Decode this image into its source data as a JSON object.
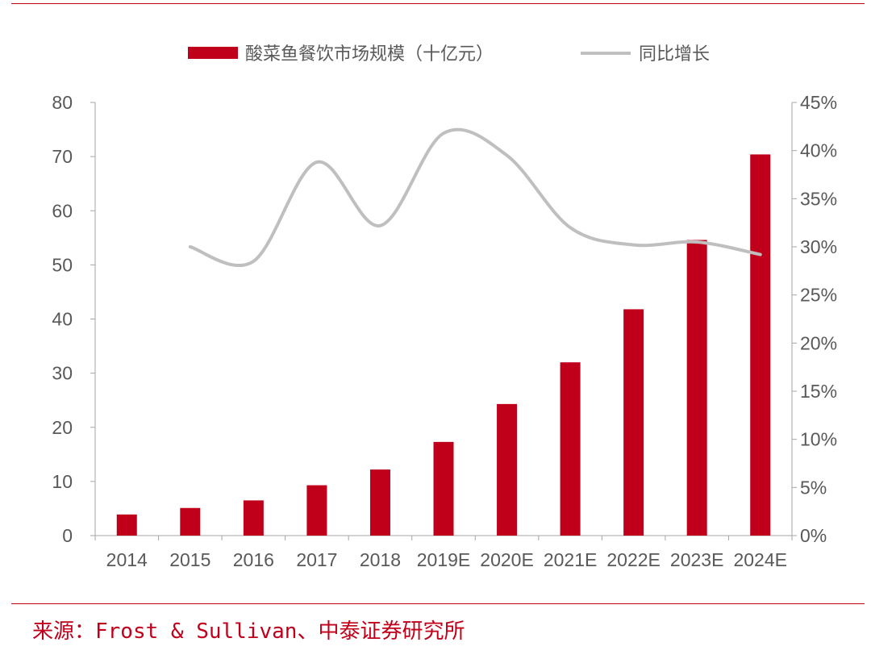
{
  "source": "来源：Frost & Sullivan、中泰证券研究所",
  "chart_data": {
    "type": "bar+line",
    "categories": [
      "2014",
      "2015",
      "2016",
      "2017",
      "2018",
      "2019E",
      "2020E",
      "2021E",
      "2022E",
      "2023E",
      "2024E"
    ],
    "series": [
      {
        "name": "酸菜鱼餐饮市场规模（十亿元）",
        "type": "bar",
        "axis": "left",
        "color": "#c0001a",
        "values": [
          3.9,
          5.1,
          6.5,
          9.3,
          12.2,
          17.3,
          24.3,
          32.0,
          41.8,
          54.6,
          70.4
        ]
      },
      {
        "name": "同比增长",
        "type": "line",
        "axis": "right",
        "color": "#bfbfbf",
        "values": [
          null,
          0.3,
          0.285,
          0.388,
          0.322,
          0.418,
          0.395,
          0.32,
          0.302,
          0.305,
          0.292
        ]
      }
    ],
    "left_axis": {
      "ylim": [
        0,
        80
      ],
      "ticks": [
        0,
        10,
        20,
        30,
        40,
        50,
        60,
        70,
        80
      ]
    },
    "right_axis": {
      "ylim": [
        0,
        0.45
      ],
      "ticks": [
        "0%",
        "5%",
        "10%",
        "15%",
        "20%",
        "25%",
        "30%",
        "35%",
        "40%",
        "45%"
      ]
    },
    "legend": "top-center",
    "grid": false
  }
}
